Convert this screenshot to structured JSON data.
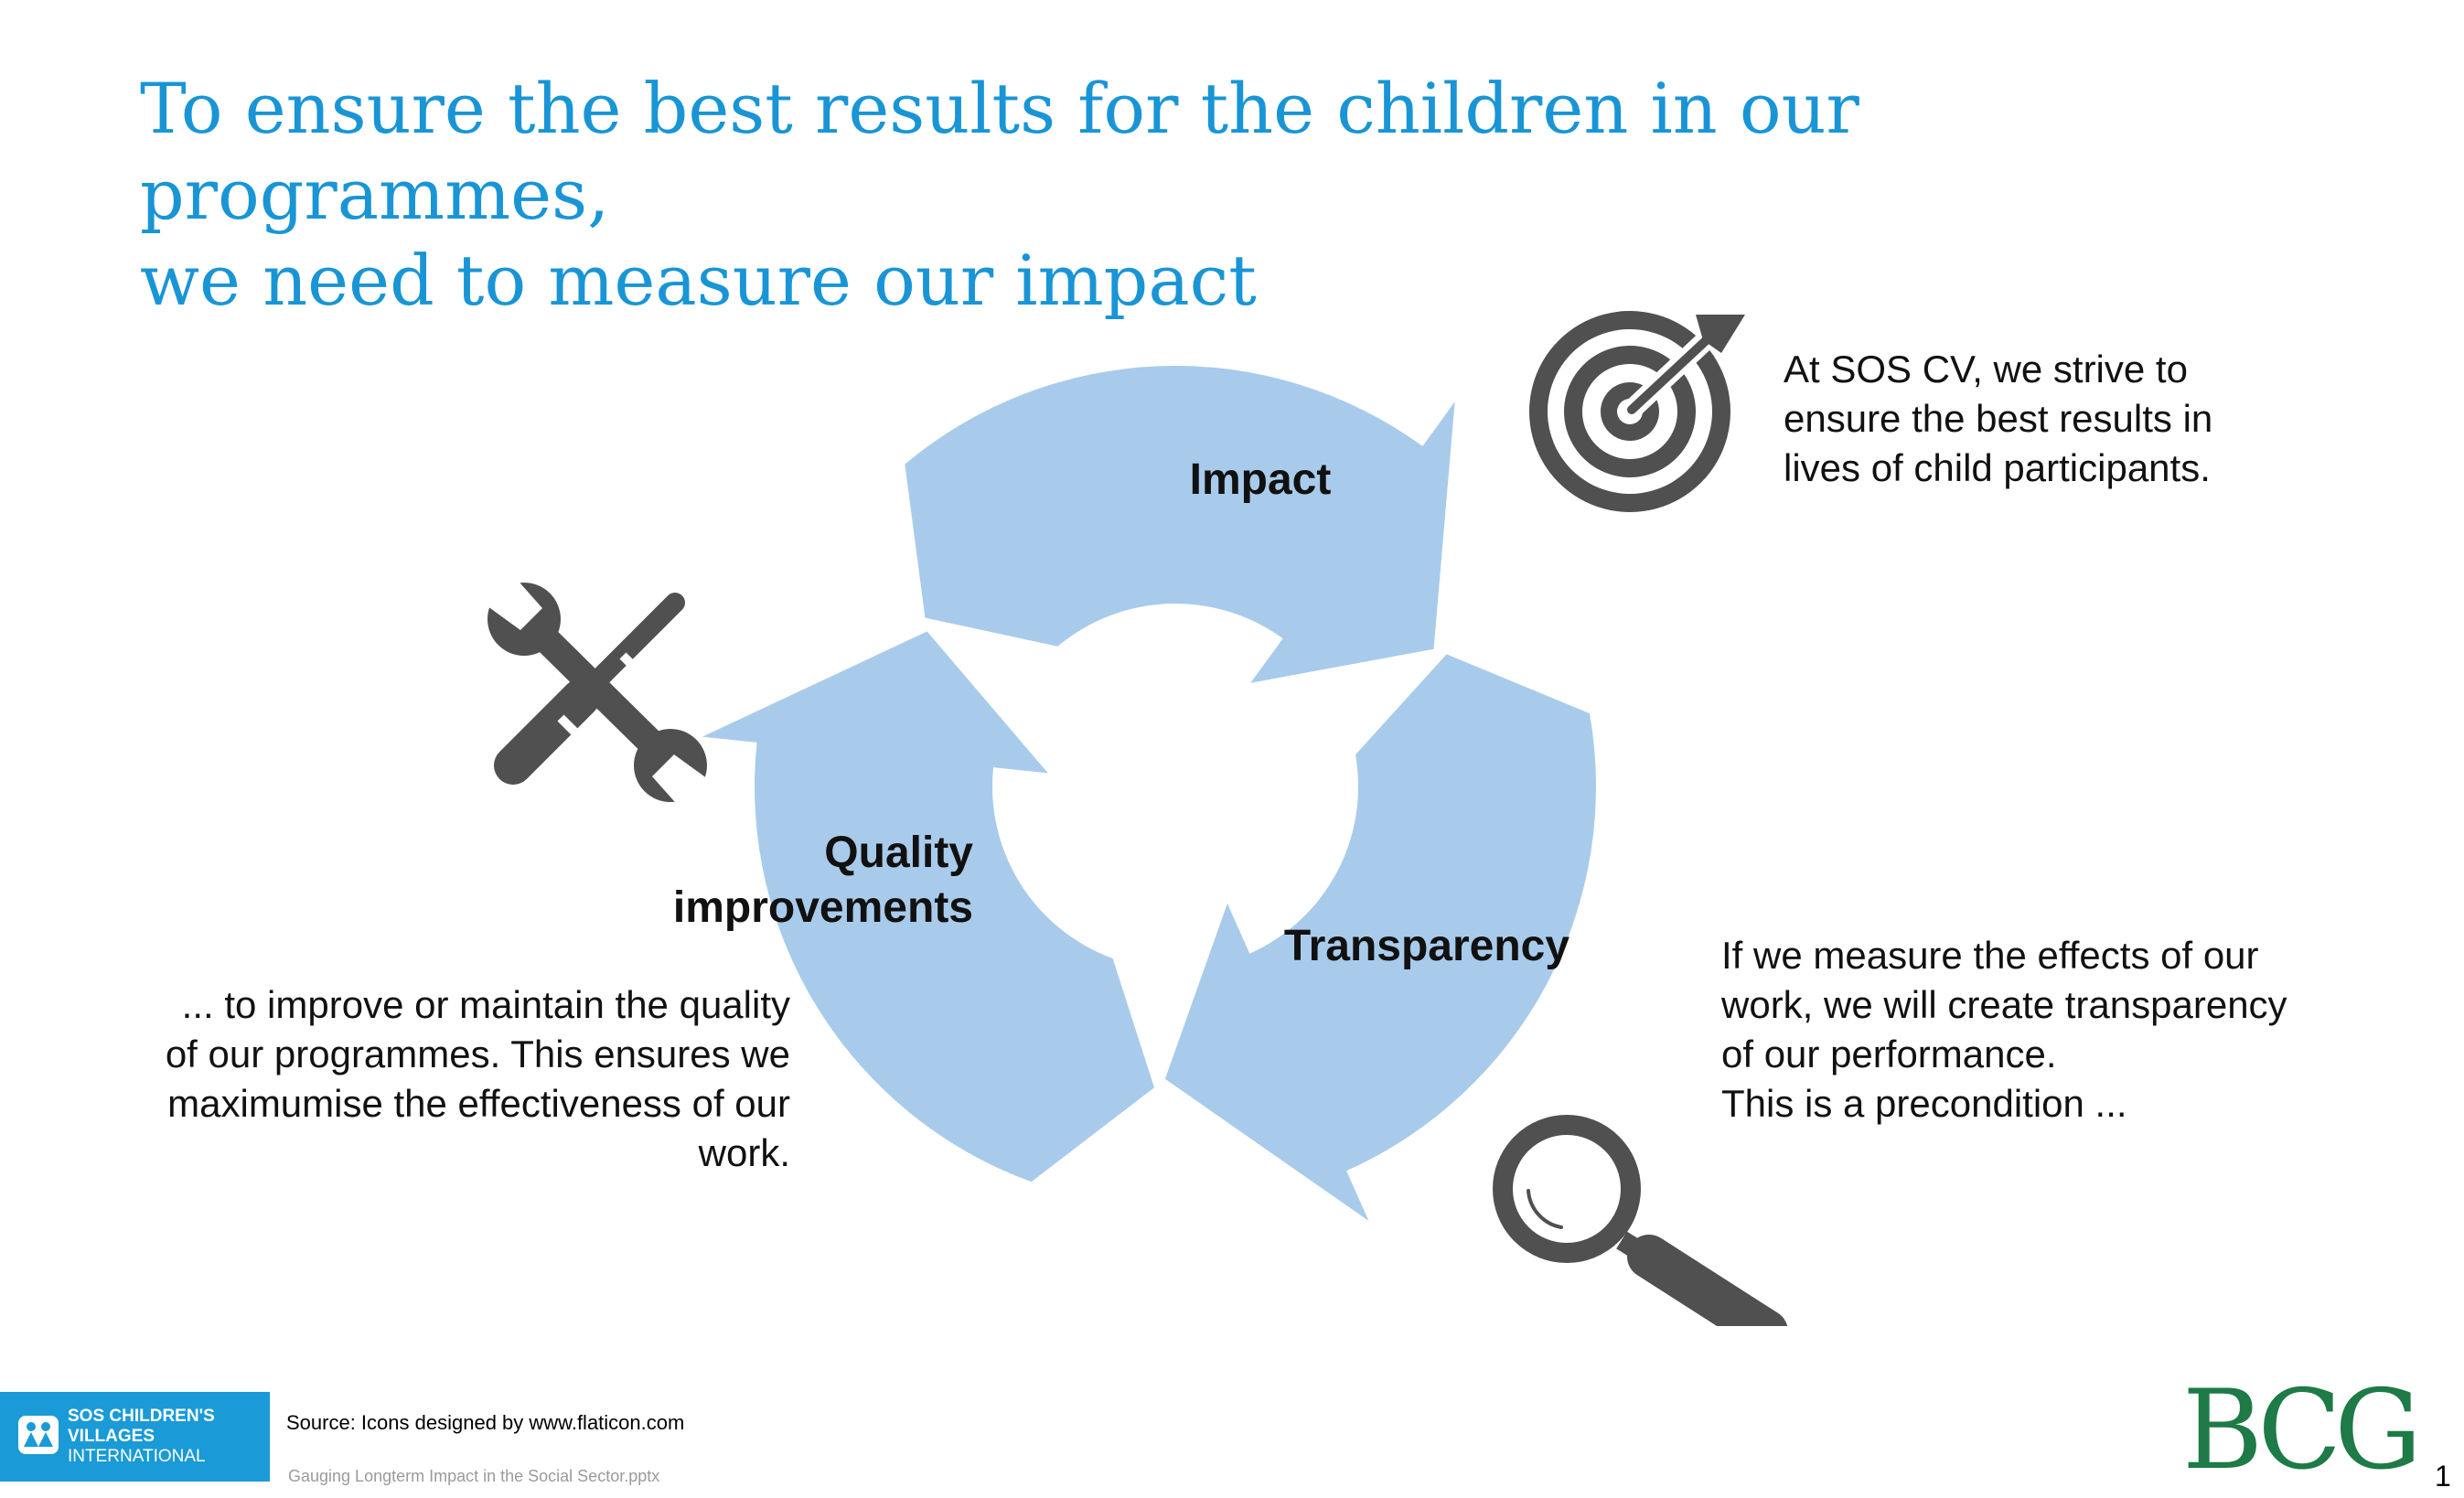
{
  "title": {
    "line1": "To ensure the best results for the children in our programmes,",
    "line2": "we need to measure our impact"
  },
  "colors": {
    "title": "#1995d6",
    "cycle": "#a9cbeb",
    "icons": "#505050",
    "sos_brand": "#1a9ad7",
    "bcg_brand": "#1e7a46"
  },
  "cycle": {
    "stages": [
      {
        "label_lines": [
          "Impact"
        ],
        "icon": "target-icon"
      },
      {
        "label_lines": [
          "Transparency"
        ],
        "icon": "magnifier-icon"
      },
      {
        "label_lines": [
          "Quality",
          "improvements"
        ],
        "icon": "tools-icon"
      }
    ]
  },
  "descriptions": {
    "impact": [
      "At SOS CV, we strive to",
      "ensure the best results in",
      "lives of child participants."
    ],
    "transparency": [
      "If we measure the effects of our",
      "work, we will create transparency",
      "of our performance.",
      "This is a precondition ..."
    ],
    "quality": [
      "... to  improve or maintain the quality",
      "of our programmes. This ensures we",
      "maximumise the effectiveness of our",
      "work."
    ]
  },
  "footer": {
    "sos_logo_lines": [
      "SOS CHILDREN'S",
      "VILLAGES",
      "INTERNATIONAL"
    ],
    "source": "Source: Icons designed by www.flaticon.com",
    "filename": "Gauging Longterm Impact in the Social Sector.pptx",
    "bcg_logo": "BCG",
    "page_number": "1"
  }
}
